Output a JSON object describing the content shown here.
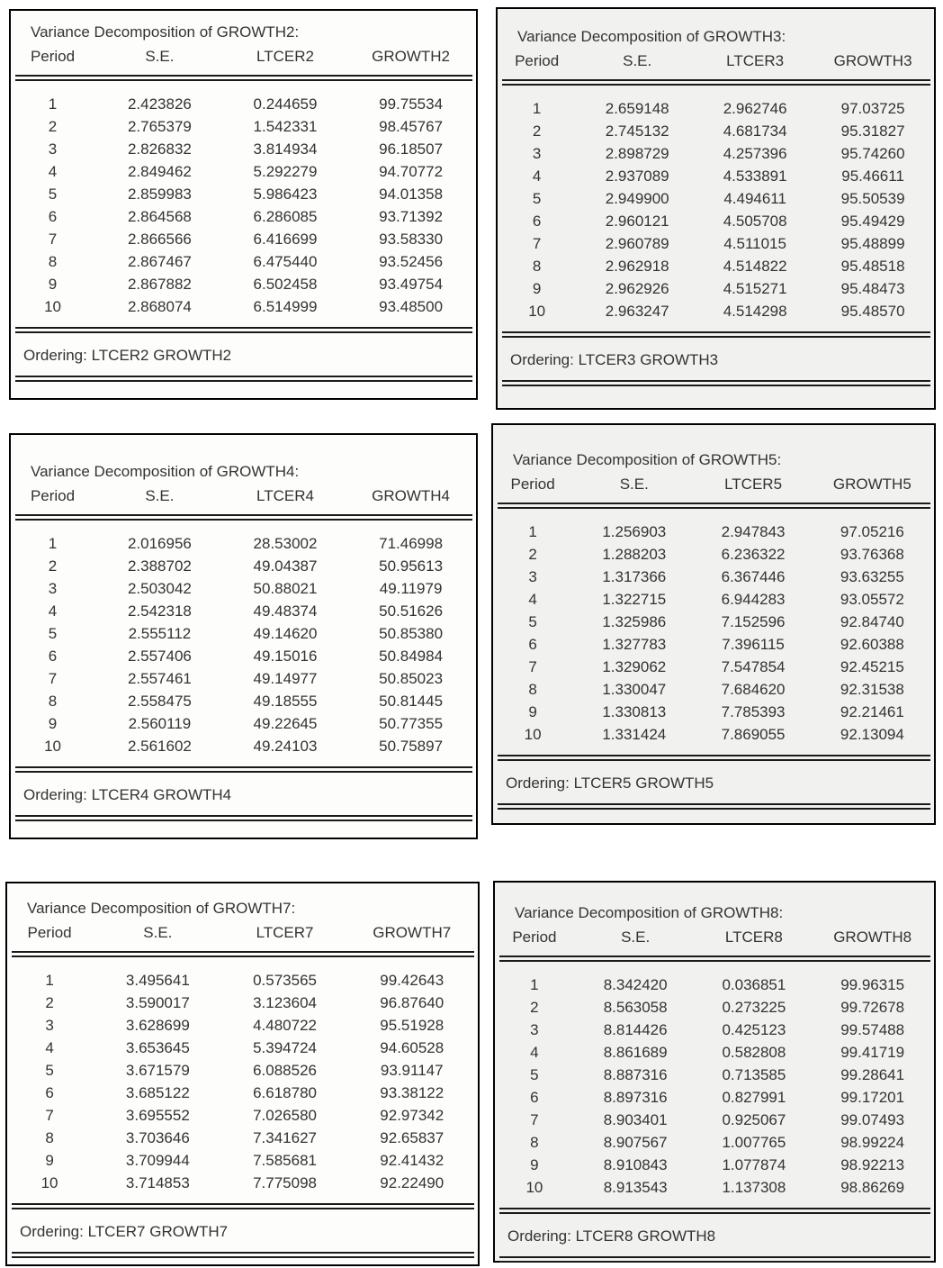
{
  "panels": [
    {
      "title": "Variance Decomposition of GROWTH2:",
      "columns": [
        "Period",
        "S.E.",
        "LTCER2",
        "GROWTH2"
      ],
      "rows": [
        [
          "1",
          "2.423826",
          "0.244659",
          "99.75534"
        ],
        [
          "2",
          "2.765379",
          "1.542331",
          "98.45767"
        ],
        [
          "3",
          "2.826832",
          "3.814934",
          "96.18507"
        ],
        [
          "4",
          "2.849462",
          "5.292279",
          "94.70772"
        ],
        [
          "5",
          "2.859983",
          "5.986423",
          "94.01358"
        ],
        [
          "6",
          "2.864568",
          "6.286085",
          "93.71392"
        ],
        [
          "7",
          "2.866566",
          "6.416699",
          "93.58330"
        ],
        [
          "8",
          "2.867467",
          "6.475440",
          "93.52456"
        ],
        [
          "9",
          "2.867882",
          "6.502458",
          "93.49754"
        ],
        [
          "10",
          "2.868074",
          "6.514999",
          "93.48500"
        ]
      ],
      "ordering": "Ordering: LTCER2 GROWTH2"
    },
    {
      "title": "Variance Decomposition of GROWTH3:",
      "columns": [
        "Period",
        "S.E.",
        "LTCER3",
        "GROWTH3"
      ],
      "rows": [
        [
          "1",
          "2.659148",
          "2.962746",
          "97.03725"
        ],
        [
          "2",
          "2.745132",
          "4.681734",
          "95.31827"
        ],
        [
          "3",
          "2.898729",
          "4.257396",
          "95.74260"
        ],
        [
          "4",
          "2.937089",
          "4.533891",
          "95.46611"
        ],
        [
          "5",
          "2.949900",
          "4.494611",
          "95.50539"
        ],
        [
          "6",
          "2.960121",
          "4.505708",
          "95.49429"
        ],
        [
          "7",
          "2.960789",
          "4.511015",
          "95.48899"
        ],
        [
          "8",
          "2.962918",
          "4.514822",
          "95.48518"
        ],
        [
          "9",
          "2.962926",
          "4.515271",
          "95.48473"
        ],
        [
          "10",
          "2.963247",
          "4.514298",
          "95.48570"
        ]
      ],
      "ordering": "Ordering: LTCER3 GROWTH3"
    },
    {
      "title": "Variance Decomposition of GROWTH4:",
      "columns": [
        "Period",
        "S.E.",
        "LTCER4",
        "GROWTH4"
      ],
      "rows": [
        [
          "1",
          "2.016956",
          "28.53002",
          "71.46998"
        ],
        [
          "2",
          "2.388702",
          "49.04387",
          "50.95613"
        ],
        [
          "3",
          "2.503042",
          "50.88021",
          "49.11979"
        ],
        [
          "4",
          "2.542318",
          "49.48374",
          "50.51626"
        ],
        [
          "5",
          "2.555112",
          "49.14620",
          "50.85380"
        ],
        [
          "6",
          "2.557406",
          "49.15016",
          "50.84984"
        ],
        [
          "7",
          "2.557461",
          "49.14977",
          "50.85023"
        ],
        [
          "8",
          "2.558475",
          "49.18555",
          "50.81445"
        ],
        [
          "9",
          "2.560119",
          "49.22645",
          "50.77355"
        ],
        [
          "10",
          "2.561602",
          "49.24103",
          "50.75897"
        ]
      ],
      "ordering": "Ordering: LTCER4 GROWTH4"
    },
    {
      "title": "Variance Decomposition of GROWTH5:",
      "columns": [
        "Period",
        "S.E.",
        "LTCER5",
        "GROWTH5"
      ],
      "rows": [
        [
          "1",
          "1.256903",
          "2.947843",
          "97.05216"
        ],
        [
          "2",
          "1.288203",
          "6.236322",
          "93.76368"
        ],
        [
          "3",
          "1.317366",
          "6.367446",
          "93.63255"
        ],
        [
          "4",
          "1.322715",
          "6.944283",
          "93.05572"
        ],
        [
          "5",
          "1.325986",
          "7.152596",
          "92.84740"
        ],
        [
          "6",
          "1.327783",
          "7.396115",
          "92.60388"
        ],
        [
          "7",
          "1.329062",
          "7.547854",
          "92.45215"
        ],
        [
          "8",
          "1.330047",
          "7.684620",
          "92.31538"
        ],
        [
          "9",
          "1.330813",
          "7.785393",
          "92.21461"
        ],
        [
          "10",
          "1.331424",
          "7.869055",
          "92.13094"
        ]
      ],
      "ordering": "Ordering: LTCER5 GROWTH5"
    },
    {
      "title": "Variance Decomposition of GROWTH7:",
      "columns": [
        "Period",
        "S.E.",
        "LTCER7",
        "GROWTH7"
      ],
      "rows": [
        [
          "1",
          "3.495641",
          "0.573565",
          "99.42643"
        ],
        [
          "2",
          "3.590017",
          "3.123604",
          "96.87640"
        ],
        [
          "3",
          "3.628699",
          "4.480722",
          "95.51928"
        ],
        [
          "4",
          "3.653645",
          "5.394724",
          "94.60528"
        ],
        [
          "5",
          "3.671579",
          "6.088526",
          "93.91147"
        ],
        [
          "6",
          "3.685122",
          "6.618780",
          "93.38122"
        ],
        [
          "7",
          "3.695552",
          "7.026580",
          "92.97342"
        ],
        [
          "8",
          "3.703646",
          "7.341627",
          "92.65837"
        ],
        [
          "9",
          "3.709944",
          "7.585681",
          "92.41432"
        ],
        [
          "10",
          "3.714853",
          "7.775098",
          "92.22490"
        ]
      ],
      "ordering": "Ordering: LTCER7 GROWTH7"
    },
    {
      "title": "Variance Decomposition of GROWTH8:",
      "columns": [
        "Period",
        "S.E.",
        "LTCER8",
        "GROWTH8"
      ],
      "rows": [
        [
          "1",
          "8.342420",
          "0.036851",
          "99.96315"
        ],
        [
          "2",
          "8.563058",
          "0.273225",
          "99.72678"
        ],
        [
          "3",
          "8.814426",
          "0.425123",
          "99.57488"
        ],
        [
          "4",
          "8.861689",
          "0.582808",
          "99.41719"
        ],
        [
          "5",
          "8.887316",
          "0.713585",
          "99.28641"
        ],
        [
          "6",
          "8.897316",
          "0.827991",
          "99.17201"
        ],
        [
          "7",
          "8.903401",
          "0.925067",
          "99.07493"
        ],
        [
          "8",
          "8.907567",
          "1.007765",
          "98.99224"
        ],
        [
          "9",
          "8.910843",
          "1.077874",
          "98.92213"
        ],
        [
          "10",
          "8.913543",
          "1.137308",
          "98.86269"
        ]
      ],
      "ordering": "Ordering: LTCER8 GROWTH8"
    }
  ],
  "colors": {
    "panel_border": "#000000",
    "text": "#333333",
    "left_panel_bg": "#fdfdfc",
    "right_panel_bg": "#f1f1ef"
  }
}
